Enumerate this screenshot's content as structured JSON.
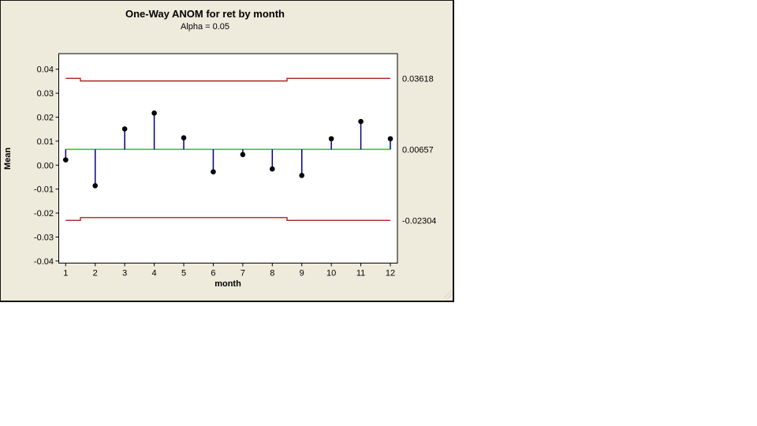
{
  "window": {
    "app": "Minitab graph window"
  },
  "chart_data": {
    "type": "scatter",
    "variant": "one-way ANOM stem-and-dot chart with decision limits",
    "title": "One-Way ANOM for ret by month",
    "subtitle": "Alpha = 0.05",
    "xlabel": "month",
    "ylabel": "Mean",
    "categories": [
      "1",
      "2",
      "3",
      "4",
      "5",
      "6",
      "7",
      "8",
      "9",
      "10",
      "11",
      "12"
    ],
    "values": [
      0.0022,
      -0.0086,
      0.0151,
      0.0217,
      0.0114,
      -0.0028,
      0.0044,
      -0.0016,
      -0.0043,
      0.011,
      0.0182,
      0.011
    ],
    "center_line": 0.00657,
    "center_label": "0.00657",
    "upper_decision_limit": 0.03618,
    "udl_label": "0.03618",
    "lower_decision_limit": -0.02304,
    "ldl_label": "-0.02304",
    "upper_limit_segments": [
      {
        "from": 1,
        "to": 1.5,
        "value": 0.03618
      },
      {
        "from": 1.5,
        "to": 8.5,
        "value": 0.0351
      },
      {
        "from": 8.5,
        "to": 12,
        "value": 0.03618
      }
    ],
    "lower_limit_segments": [
      {
        "from": 1,
        "to": 1.5,
        "value": -0.02304
      },
      {
        "from": 1.5,
        "to": 8.5,
        "value": -0.0219
      },
      {
        "from": 8.5,
        "to": 12,
        "value": -0.02304
      }
    ],
    "y_ticks": [
      {
        "value": 0.04,
        "label": "0.04"
      },
      {
        "value": 0.03,
        "label": "0.03"
      },
      {
        "value": 0.02,
        "label": "0.02"
      },
      {
        "value": 0.01,
        "label": "0.01"
      },
      {
        "value": 0.0,
        "label": "0.00"
      },
      {
        "value": -0.01,
        "label": "-0.01"
      },
      {
        "value": -0.02,
        "label": "-0.02"
      },
      {
        "value": -0.03,
        "label": "-0.03"
      },
      {
        "value": -0.04,
        "label": "-0.04"
      }
    ],
    "ylim": [
      -0.041,
      0.0465
    ],
    "grid": false,
    "legend": false,
    "colors": {
      "center_line": "#33CC33",
      "decision_limits": "#B22222",
      "stems": "#00008B",
      "points": "#000000",
      "plot_background": "#FFFFFF",
      "window_background": "#EEEADC"
    }
  }
}
